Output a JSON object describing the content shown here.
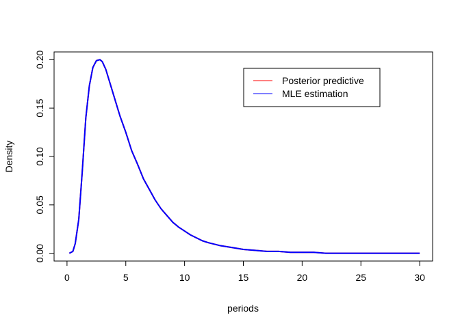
{
  "chart_data": {
    "type": "line",
    "title": "",
    "xlabel": "periods",
    "ylabel": "Density",
    "xlim": [
      -1.1,
      31.1
    ],
    "ylim": [
      -0.008,
      0.208
    ],
    "xticks": [
      0,
      5,
      10,
      15,
      20,
      25,
      30
    ],
    "xtick_labels": [
      "0",
      "5",
      "10",
      "15",
      "20",
      "25",
      "30"
    ],
    "yticks": [
      0.0,
      0.05,
      0.1,
      0.15,
      0.2
    ],
    "ytick_labels": [
      "0.00",
      "0.05",
      "0.10",
      "0.15",
      "0.20"
    ],
    "grid": false,
    "legend": {
      "placement": "top-right",
      "entries": [
        "Posterior predictive",
        "MLE estimation"
      ]
    },
    "series": [
      {
        "name": "Posterior predictive",
        "color": "#ff0000",
        "x": [
          0.2,
          0.5,
          0.7,
          1.0,
          1.3,
          1.6,
          1.9,
          2.2,
          2.5,
          2.8,
          3.0,
          3.3,
          3.6,
          4.0,
          4.5,
          5.0,
          5.5,
          6.0,
          6.5,
          7.0,
          7.5,
          8.0,
          8.5,
          9.0,
          9.5,
          10.0,
          10.5,
          11.0,
          11.5,
          12.0,
          13.0,
          14.0,
          15.0,
          16.0,
          17.0,
          18.0,
          19.0,
          20.0,
          21.0,
          22.0,
          24.0,
          26.0,
          28.0,
          30.0
        ],
        "y": [
          0.0,
          0.002,
          0.01,
          0.035,
          0.085,
          0.14,
          0.173,
          0.192,
          0.199,
          0.2,
          0.198,
          0.19,
          0.178,
          0.162,
          0.142,
          0.125,
          0.106,
          0.092,
          0.077,
          0.066,
          0.055,
          0.046,
          0.039,
          0.032,
          0.027,
          0.023,
          0.019,
          0.016,
          0.013,
          0.011,
          0.008,
          0.006,
          0.004,
          0.003,
          0.002,
          0.002,
          0.001,
          0.001,
          0.001,
          0.0,
          0.0,
          0.0,
          0.0,
          0.0
        ]
      },
      {
        "name": "MLE estimation",
        "color": "#0000ff",
        "x": [
          0.2,
          0.5,
          0.7,
          1.0,
          1.3,
          1.6,
          1.9,
          2.2,
          2.5,
          2.8,
          3.0,
          3.3,
          3.6,
          4.0,
          4.5,
          5.0,
          5.5,
          6.0,
          6.5,
          7.0,
          7.5,
          8.0,
          8.5,
          9.0,
          9.5,
          10.0,
          10.5,
          11.0,
          11.5,
          12.0,
          13.0,
          14.0,
          15.0,
          16.0,
          17.0,
          18.0,
          19.0,
          20.0,
          21.0,
          22.0,
          24.0,
          26.0,
          28.0,
          30.0
        ],
        "y": [
          0.0,
          0.002,
          0.01,
          0.035,
          0.085,
          0.14,
          0.173,
          0.192,
          0.199,
          0.2,
          0.198,
          0.19,
          0.178,
          0.162,
          0.142,
          0.125,
          0.106,
          0.092,
          0.077,
          0.066,
          0.055,
          0.046,
          0.039,
          0.032,
          0.027,
          0.023,
          0.019,
          0.016,
          0.013,
          0.011,
          0.008,
          0.006,
          0.004,
          0.003,
          0.002,
          0.002,
          0.001,
          0.001,
          0.001,
          0.0,
          0.0,
          0.0,
          0.0,
          0.0
        ]
      }
    ]
  }
}
